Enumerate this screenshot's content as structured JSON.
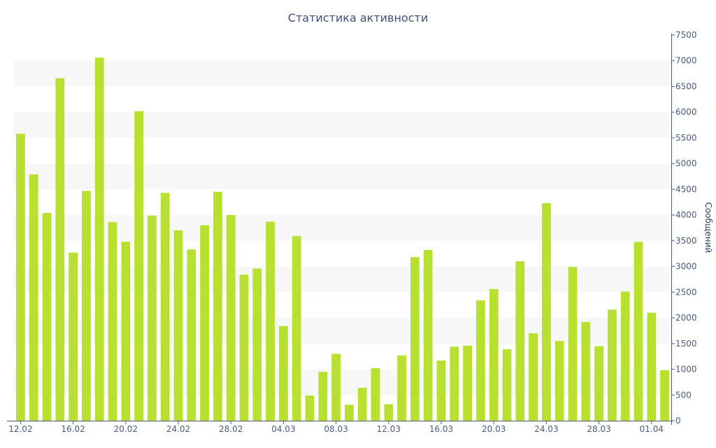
{
  "chart_data": {
    "type": "bar",
    "title": "Статистика активности",
    "ylabel": "Сообщений",
    "ylim": [
      0,
      7500
    ],
    "y_ticks": [
      0,
      500,
      1000,
      1500,
      2000,
      2500,
      3000,
      3500,
      4000,
      4500,
      5000,
      5500,
      6000,
      6500,
      7000,
      7500
    ],
    "x_tick_labels": [
      "12.02",
      "16.02",
      "20.02",
      "24.02",
      "28.02",
      "04.03",
      "08.03",
      "12.03",
      "16.03",
      "20.03",
      "24.03",
      "28.03",
      "01.04"
    ],
    "label_every": 4,
    "categories": [
      "12.02",
      "13.02",
      "14.02",
      "15.02",
      "16.02",
      "17.02",
      "18.02",
      "19.02",
      "20.02",
      "21.02",
      "22.02",
      "23.02",
      "24.02",
      "25.02",
      "26.02",
      "27.02",
      "28.02",
      "01.03",
      "02.03",
      "03.03",
      "04.03",
      "05.03",
      "06.03",
      "07.03",
      "08.03",
      "09.03",
      "10.03",
      "11.03",
      "12.03",
      "13.03",
      "14.03",
      "15.03",
      "16.03",
      "17.03",
      "18.03",
      "19.03",
      "20.03",
      "21.03",
      "22.03",
      "23.03",
      "24.03",
      "25.03",
      "26.03",
      "27.03",
      "28.03",
      "29.03",
      "30.03",
      "31.03",
      "01.04",
      "02.04"
    ],
    "values": [
      5580,
      4790,
      4040,
      6660,
      3270,
      4470,
      7060,
      3860,
      3480,
      6020,
      3990,
      4430,
      3700,
      3330,
      3800,
      4450,
      4000,
      2840,
      2960,
      3870,
      1840,
      3590,
      490,
      950,
      1300,
      310,
      640,
      1020,
      320,
      1270,
      3180,
      3320,
      1170,
      1440,
      1460,
      2340,
      2560,
      1390,
      3100,
      1700,
      4230,
      1550,
      2990,
      1920,
      1450,
      2160,
      2510,
      3480,
      2100,
      980
    ],
    "bar_color": "#b8e030",
    "band_color": "#f7f7f7",
    "axis_color": "#4a5a7b",
    "grid": "alternating horizontal bands",
    "y_axis_position": "right",
    "legend": "none"
  }
}
